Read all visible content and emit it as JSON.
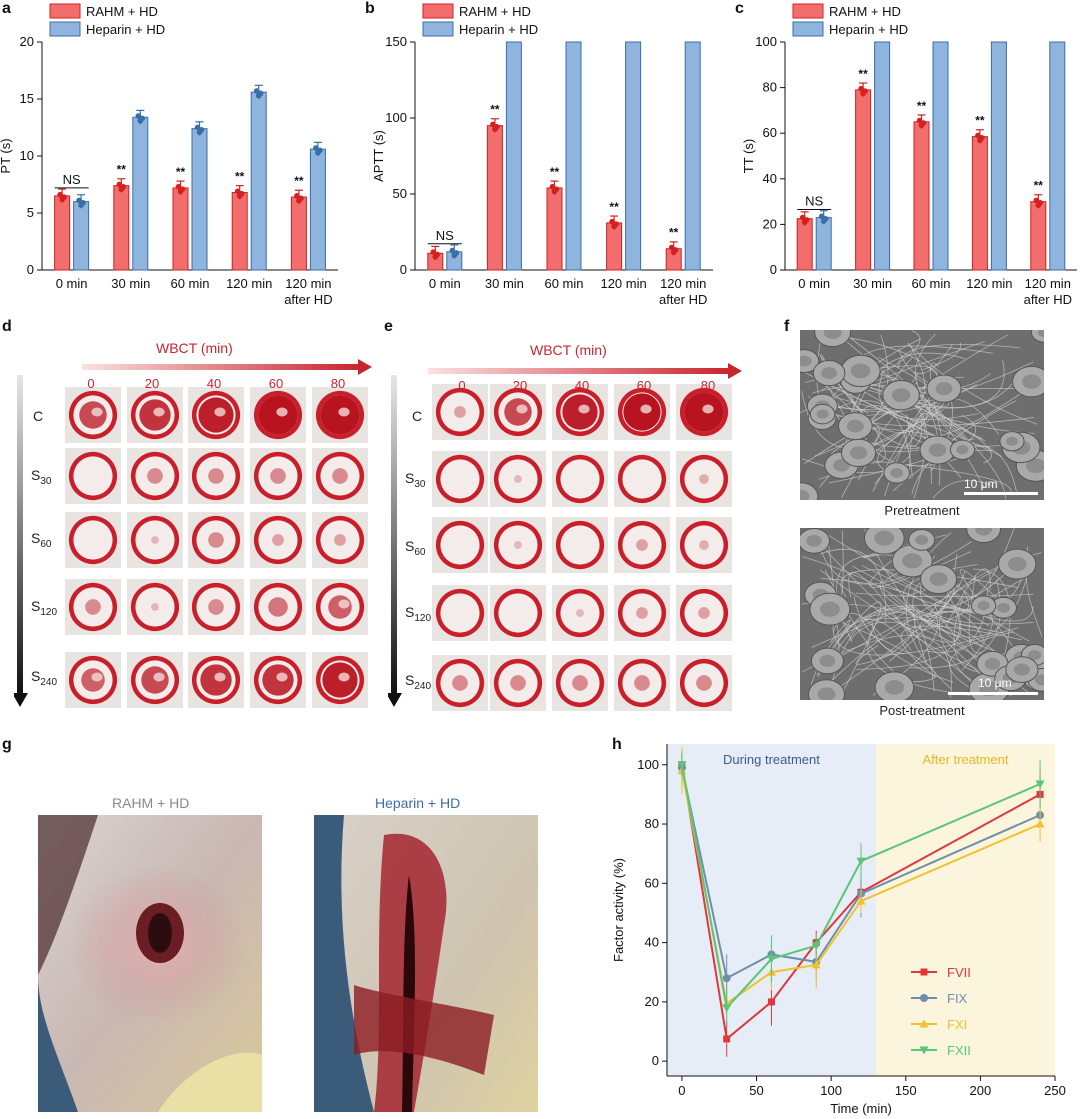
{
  "panel_labels": {
    "a": "a",
    "b": "b",
    "c": "c",
    "d": "d",
    "e": "e",
    "f": "f",
    "g": "g",
    "h": "h"
  },
  "colors": {
    "rahm": "#f26d6d",
    "rahm_edge": "#d42020",
    "heparin": "#8fb4dd",
    "heparin_edge": "#3a6ea8",
    "fvii": "#e0373b",
    "fix": "#6f8fa8",
    "fxi": "#f2c12e",
    "fxii": "#5ac47a",
    "during_bg": "#e6edf6",
    "after_bg": "#fbf5de",
    "during_text": "#3a5c8c",
    "after_text": "#e8b820",
    "wbct": "#c9252f"
  },
  "chart_data": [
    {
      "id": "a",
      "type": "bar",
      "ylabel": "PT (s)",
      "ylim": [
        0,
        20
      ],
      "yticks": [
        0,
        5,
        10,
        15,
        20
      ],
      "categories": [
        "0 min",
        "30 min",
        "60 min",
        "120 min",
        "120 min\nafter HD"
      ],
      "series": [
        {
          "name": "RAHM + HD",
          "values": [
            6.5,
            7.4,
            7.2,
            6.8,
            6.4
          ]
        },
        {
          "name": "Heparin + HD",
          "values": [
            6.0,
            13.4,
            12.4,
            15.6,
            10.6
          ]
        }
      ],
      "annotations": [
        "NS",
        "**",
        "**",
        "**",
        "**"
      ]
    },
    {
      "id": "b",
      "type": "bar",
      "ylabel": "APTT (s)",
      "ylim": [
        0,
        150
      ],
      "yticks": [
        0,
        50,
        100,
        150
      ],
      "categories": [
        "0 min",
        "30 min",
        "60 min",
        "120 min",
        "120 min\nafter HD"
      ],
      "series": [
        {
          "name": "RAHM + HD",
          "values": [
            11,
            95,
            54,
            31,
            14
          ]
        },
        {
          "name": "Heparin + HD",
          "values": [
            12,
            150,
            150,
            150,
            150
          ]
        }
      ],
      "annotations": [
        "NS",
        "**",
        "**",
        "**",
        "**"
      ]
    },
    {
      "id": "c",
      "type": "bar",
      "ylabel": "TT (s)",
      "ylim": [
        0,
        100
      ],
      "yticks": [
        0,
        20,
        40,
        60,
        80,
        100
      ],
      "categories": [
        "0 min",
        "30 min",
        "60 min",
        "120 min",
        "120 min\nafter HD"
      ],
      "series": [
        {
          "name": "RAHM + HD",
          "values": [
            22.5,
            79,
            65,
            58.5,
            30
          ]
        },
        {
          "name": "Heparin + HD",
          "values": [
            23,
            100,
            100,
            100,
            100
          ]
        }
      ],
      "annotations": [
        "NS",
        "**",
        "**",
        "**",
        "**"
      ]
    },
    {
      "id": "h",
      "type": "line",
      "xlabel": "Time (min)",
      "ylabel": "Factor activity (%)",
      "xlim": [
        -10,
        250
      ],
      "ylim": [
        -5,
        107
      ],
      "xticks": [
        0,
        50,
        100,
        150,
        200,
        250
      ],
      "yticks": [
        0,
        20,
        40,
        60,
        80,
        100
      ],
      "regions": [
        {
          "label": "During treatment",
          "x0": -10,
          "x1": 130
        },
        {
          "label": "After treatment",
          "x0": 130,
          "x1": 250
        }
      ],
      "x": [
        0,
        30,
        60,
        90,
        120,
        240
      ],
      "series": [
        {
          "name": "FVII",
          "values": [
            100,
            7.5,
            20,
            40,
            57,
            90
          ]
        },
        {
          "name": "FIX",
          "values": [
            99,
            28,
            36,
            33.5,
            56.5,
            83
          ]
        },
        {
          "name": "FXI",
          "values": [
            98,
            19.5,
            30,
            32.5,
            54,
            80
          ]
        },
        {
          "name": "FXII",
          "values": [
            100,
            18,
            34.5,
            39,
            67.5,
            93.5
          ]
        }
      ]
    }
  ],
  "wbct": {
    "title": "WBCT (min)",
    "ticks": [
      "0",
      "20",
      "40",
      "60",
      "80"
    ],
    "rows": [
      {
        "main": "C",
        "sub": ""
      },
      {
        "main": "S",
        "sub": "30"
      },
      {
        "main": "S",
        "sub": "60"
      },
      {
        "main": "S",
        "sub": "120"
      },
      {
        "main": "S",
        "sub": "240"
      }
    ]
  },
  "sem": {
    "scale": "10 μm",
    "pre": "Pretreatment",
    "post": "Post-treatment"
  },
  "photos": {
    "left": "RAHM + HD",
    "right": "Heparin + HD"
  }
}
